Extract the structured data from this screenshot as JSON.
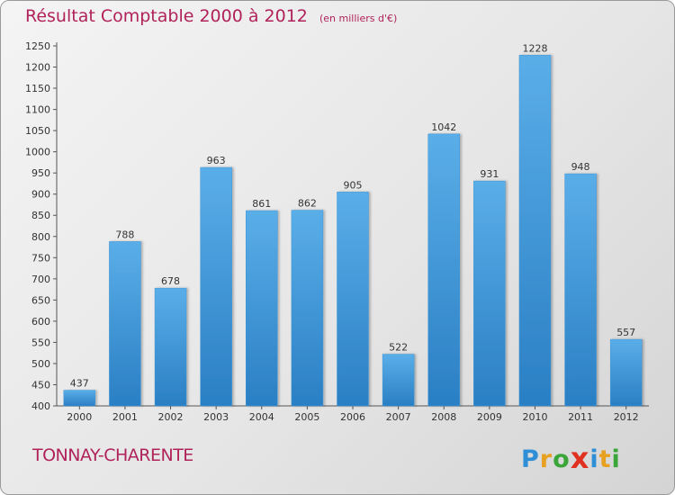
{
  "header": {
    "title": "Résultat Comptable 2000 à 2012",
    "unit": "(en milliers d'€)"
  },
  "footer": {
    "commune": "TONNAY-CHARENTE",
    "logo_letters": [
      "P",
      "r",
      "o",
      "x",
      "i",
      "t",
      "i"
    ],
    "logo_colors": [
      "#2e8fd6",
      "#e8a020",
      "#3aa63a",
      "#e03020",
      "#2e8fd6",
      "#e8a020",
      "#3aa63a"
    ]
  },
  "chart_data": {
    "type": "bar",
    "categories": [
      "2000",
      "2001",
      "2002",
      "2003",
      "2004",
      "2005",
      "2006",
      "2007",
      "2008",
      "2009",
      "2010",
      "2011",
      "2012"
    ],
    "values": [
      437,
      788,
      678,
      963,
      861,
      862,
      905,
      522,
      1042,
      931,
      1228,
      948,
      557
    ],
    "ylim": [
      400,
      1250
    ],
    "yticks": [
      400,
      450,
      500,
      550,
      600,
      650,
      700,
      750,
      800,
      850,
      900,
      950,
      1000,
      1050,
      1100,
      1150,
      1200,
      1250
    ],
    "grid": false,
    "bar_color": "#4da3e0"
  }
}
